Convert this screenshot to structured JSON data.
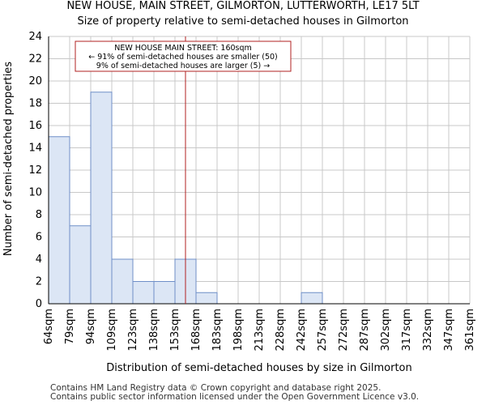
{
  "chart_data": {
    "type": "histogram",
    "title": "NEW HOUSE, MAIN STREET, GILMORTON, LUTTERWORTH, LE17 5LT",
    "subtitle": "Size of property relative to semi-detached houses in Gilmorton",
    "xlabel": "Distribution of semi-detached houses by size in Gilmorton",
    "ylabel": "Number of semi-detached properties",
    "categories": [
      "64sqm",
      "79sqm",
      "94sqm",
      "109sqm",
      "123sqm",
      "138sqm",
      "153sqm",
      "168sqm",
      "183sqm",
      "198sqm",
      "213sqm",
      "228sqm",
      "242sqm",
      "257sqm",
      "272sqm",
      "287sqm",
      "302sqm",
      "317sqm",
      "332sqm",
      "347sqm",
      "361sqm"
    ],
    "values": [
      15,
      7,
      19,
      4,
      2,
      2,
      4,
      1,
      0,
      0,
      0,
      0,
      1,
      0,
      0,
      0,
      0,
      0,
      0,
      0
    ],
    "ylim": [
      0,
      24
    ],
    "yticks": [
      0,
      2,
      4,
      6,
      8,
      10,
      12,
      14,
      16,
      18,
      20,
      22,
      24
    ],
    "marker_bin_position": 6.5,
    "annotation": {
      "line1": "NEW HOUSE MAIN STREET: 160sqm",
      "line2": "← 91% of semi-detached houses are smaller (50)",
      "line3": "9% of semi-detached houses are larger (5) →"
    },
    "colors": {
      "bar_fill": "#dce6f5",
      "bar_edge": "#6f8fc7",
      "marker": "#b22222",
      "grid": "#c8c8c8"
    }
  },
  "footer": {
    "line1": "Contains HM Land Registry data © Crown copyright and database right 2025.",
    "line2": "Contains public sector information licensed under the Open Government Licence v3.0."
  }
}
